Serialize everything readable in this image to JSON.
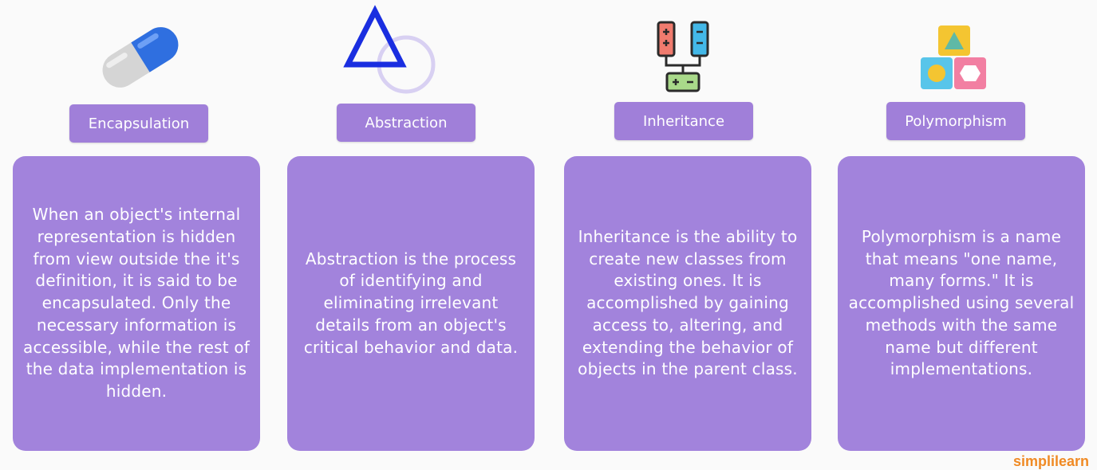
{
  "concepts": [
    {
      "title": "Encapsulation",
      "icon": "capsule-icon",
      "description": "When an object's internal representation is hidden from view outside the it's definition, it is said to be encapsulated. Only the necessary information is accessible, while the rest of the data implementation is hidden."
    },
    {
      "title": "Abstraction",
      "icon": "triangle-circle-icon",
      "description": "Abstraction is the process of identifying and eliminating irrelevant details from an object's critical behavior and data."
    },
    {
      "title": "Inheritance",
      "icon": "battery-circuit-icon",
      "description": "Inheritance is the ability to create new classes from existing ones. It is accomplished by gaining access to, altering, and extending the behavior of objects in the parent class."
    },
    {
      "title": "Polymorphism",
      "icon": "shape-blocks-icon",
      "description": "Polymorphism is a name that means \"one name, many forms.\" It is accomplished using several methods with the same name but different implementations."
    }
  ],
  "watermark": "simplilearn",
  "colors": {
    "card": "#a283dc",
    "title": "#a07fd9",
    "text": "#ffffff"
  }
}
